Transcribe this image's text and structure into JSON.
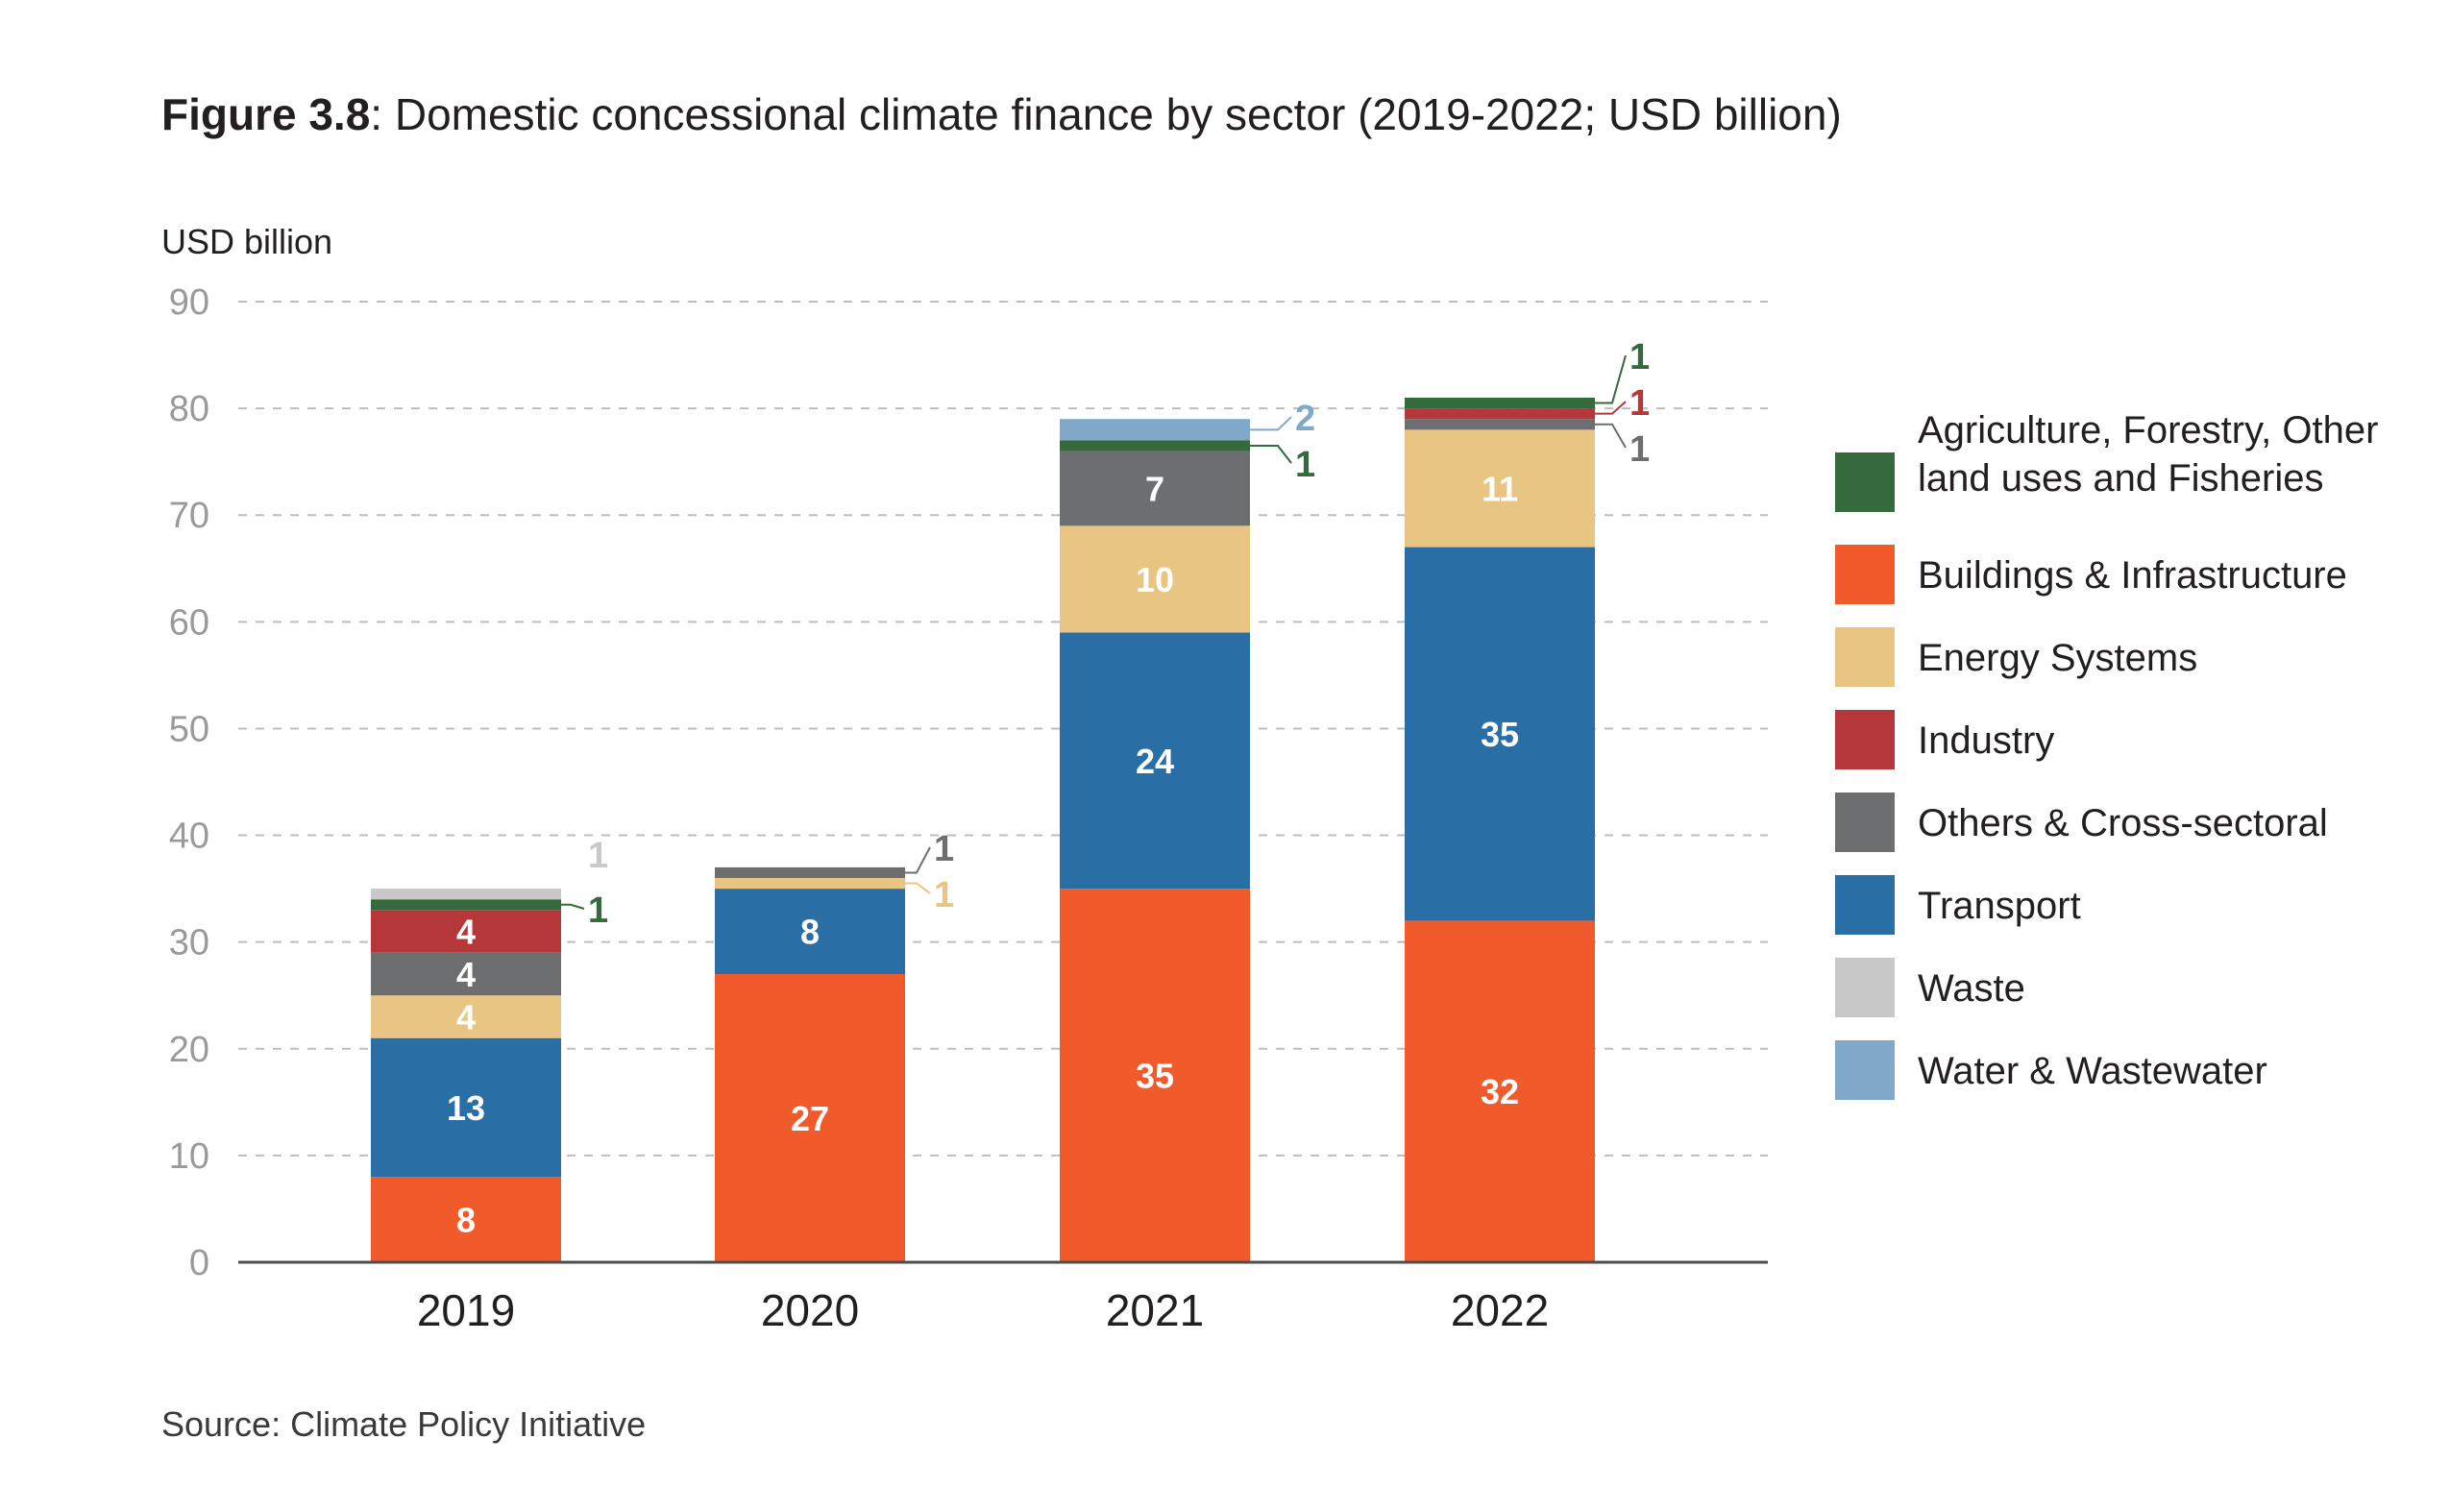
{
  "title": {
    "figure_label": "Figure 3.8",
    "text": ": Domestic concessional climate finance by sector (2019-2022; USD billion)"
  },
  "source": "Source: Climate Policy Initiative",
  "chart_data": {
    "type": "bar",
    "stacked": true,
    "ylabel": "USD billion",
    "ylim": [
      0,
      90
    ],
    "yticks": [
      0,
      10,
      20,
      30,
      40,
      50,
      60,
      70,
      80,
      90
    ],
    "grid": true,
    "legend_position": "right",
    "categories": [
      "2019",
      "2020",
      "2021",
      "2022"
    ],
    "series": [
      {
        "name": "Buildings & Infrastructure",
        "color": "#f15a2b",
        "values": [
          8,
          27,
          35,
          32
        ],
        "labels": [
          "8",
          "27",
          "35",
          "32"
        ]
      },
      {
        "name": "Transport",
        "color": "#2a6ea6",
        "values": [
          13,
          8,
          24,
          35
        ],
        "labels": [
          "13",
          "8",
          "24",
          "35"
        ]
      },
      {
        "name": "Energy Systems",
        "color": "#e9c583",
        "values": [
          4,
          1,
          10,
          11
        ],
        "labels": [
          "4",
          "1",
          "10",
          "11"
        ]
      },
      {
        "name": "Others & Cross-sectoral",
        "color": "#6d6e70",
        "values": [
          4,
          1,
          7,
          1
        ],
        "labels": [
          "4",
          "1",
          "7",
          "1"
        ]
      },
      {
        "name": "Industry",
        "color": "#b5373a",
        "values": [
          4,
          0,
          0,
          1
        ],
        "labels": [
          "4",
          "",
          "",
          "1"
        ]
      },
      {
        "name": "Agriculture, Forestry, Other land uses and Fisheries",
        "color": "#356a3c",
        "values": [
          1,
          0,
          1,
          1
        ],
        "labels": [
          "1",
          "",
          "1",
          "1"
        ]
      },
      {
        "name": "Waste",
        "color": "#c8c8c8",
        "values": [
          1,
          0,
          0,
          0
        ],
        "labels": [
          "1",
          "",
          "",
          ""
        ]
      },
      {
        "name": "Water & Wastewater",
        "color": "#7fa8c9",
        "values": [
          0,
          0,
          2,
          0
        ],
        "labels": [
          "",
          "",
          "2",
          ""
        ]
      }
    ],
    "legend": [
      {
        "lines": [
          "Agriculture, Forestry, Other",
          "land uses and Fisheries"
        ],
        "color": "#356a3c"
      },
      {
        "lines": [
          "Buildings & Infrastructure"
        ],
        "color": "#f15a2b"
      },
      {
        "lines": [
          "Energy Systems"
        ],
        "color": "#e9c583"
      },
      {
        "lines": [
          "Industry"
        ],
        "color": "#b5373a"
      },
      {
        "lines": [
          "Others & Cross-sectoral"
        ],
        "color": "#6d6e70"
      },
      {
        "lines": [
          "Transport"
        ],
        "color": "#2a6ea6"
      },
      {
        "lines": [
          "Waste"
        ],
        "color": "#c8c8c8"
      },
      {
        "lines": [
          "Water & Wastewater"
        ],
        "color": "#7fa8c9"
      }
    ]
  }
}
